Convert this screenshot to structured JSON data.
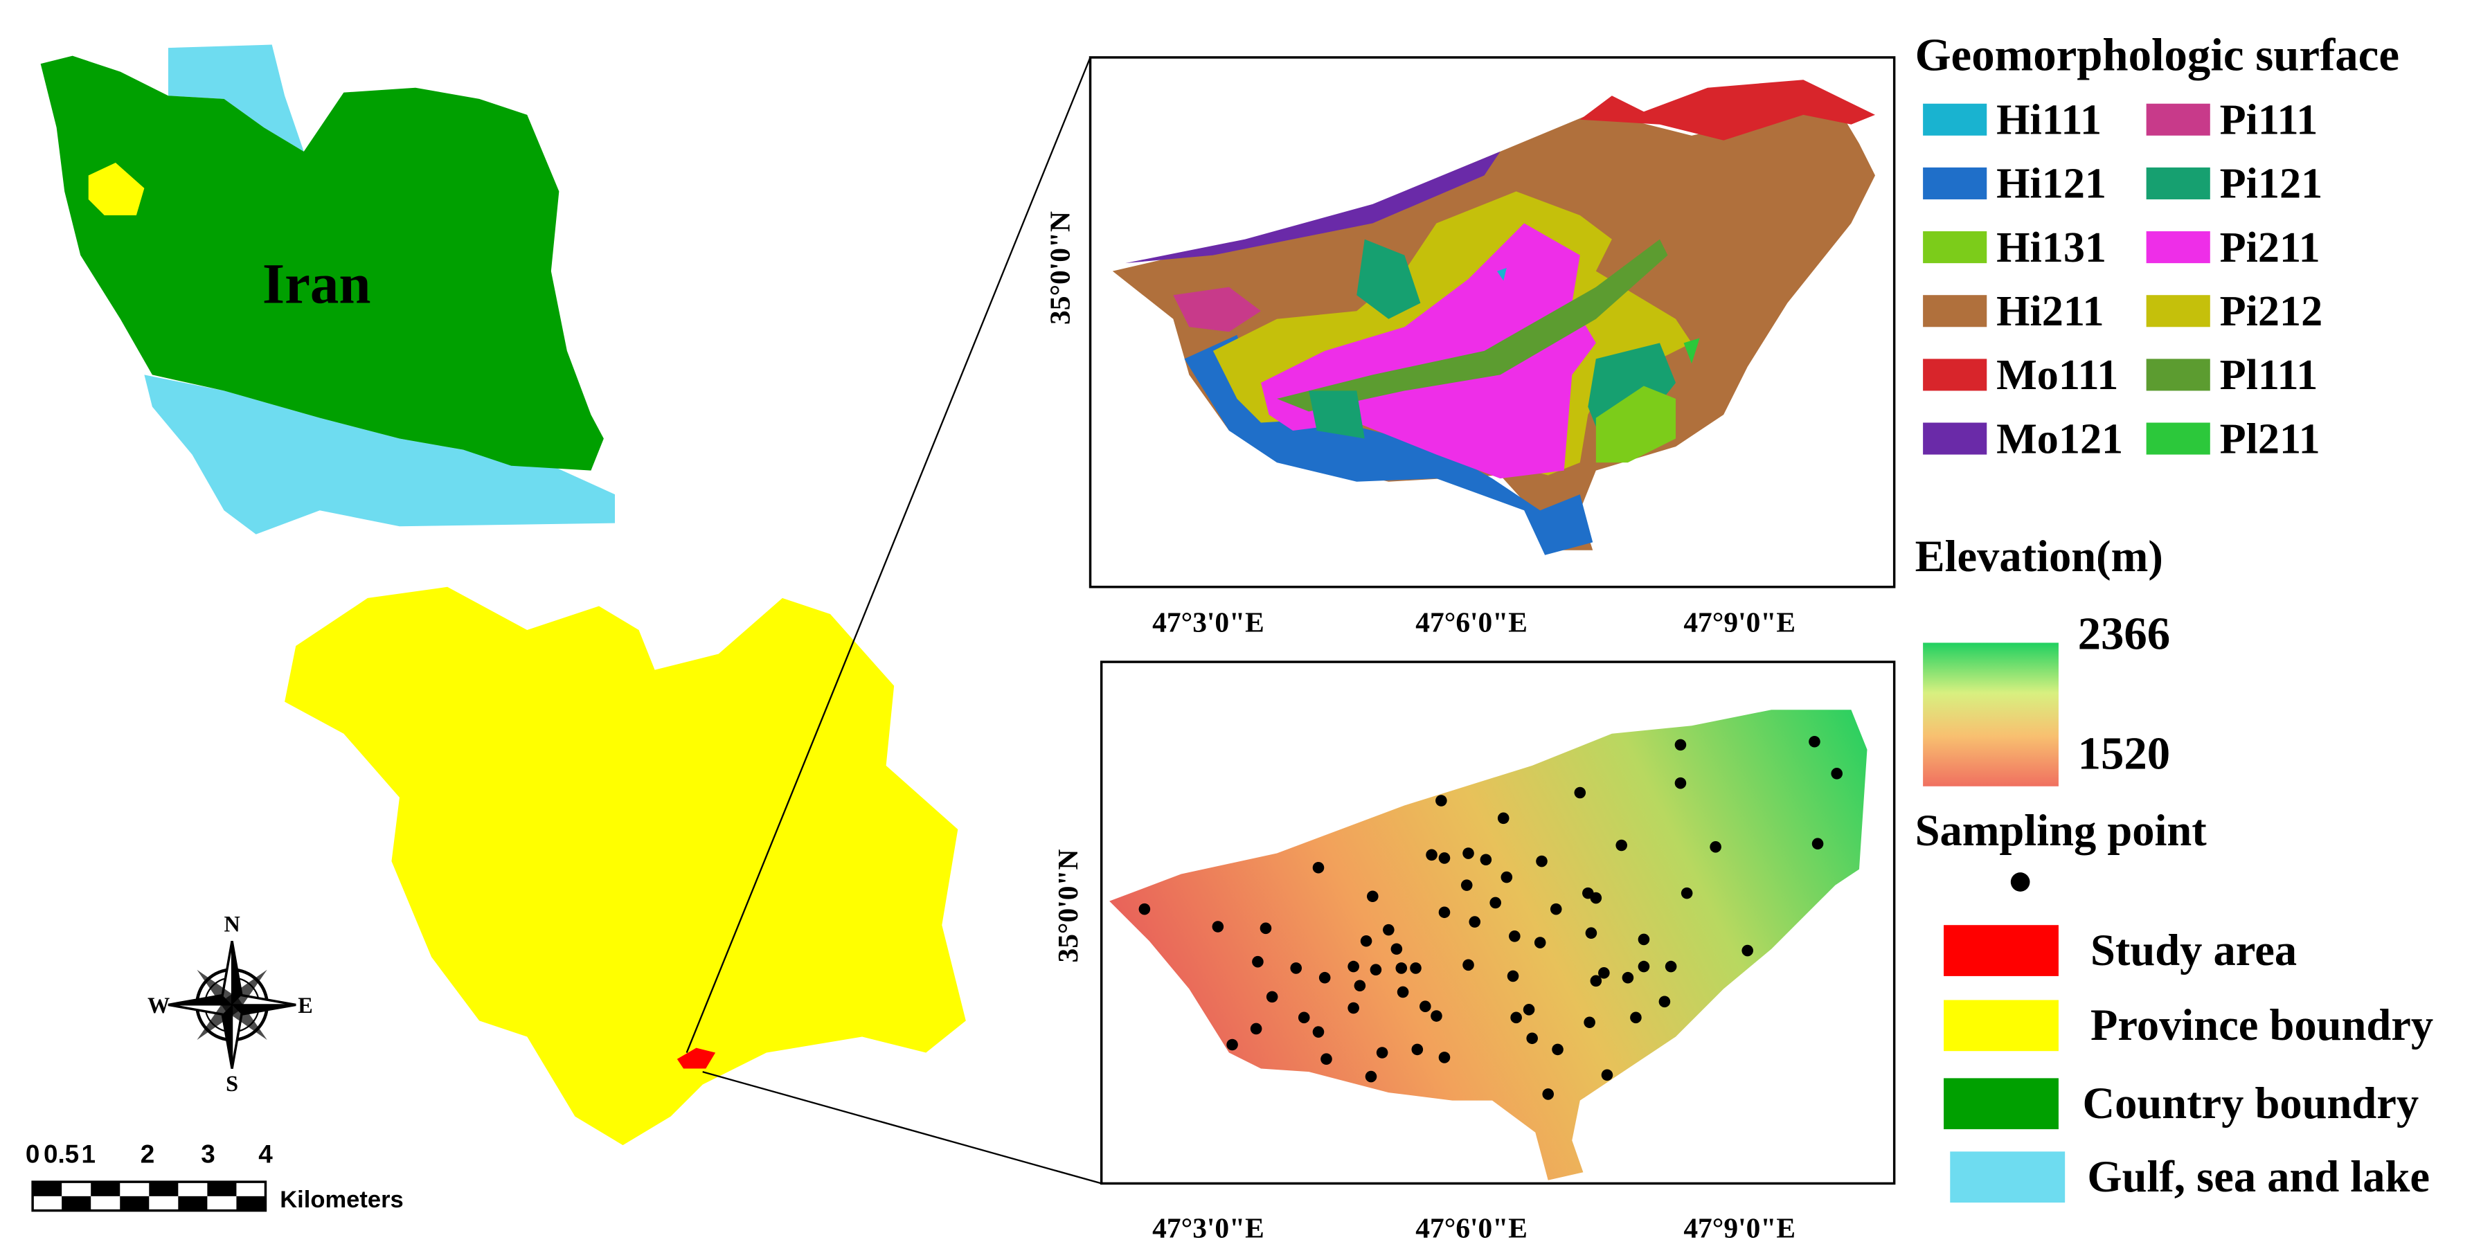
{
  "map": {
    "label": "Iran",
    "compass": {
      "north": "N",
      "east": "E",
      "south": "S",
      "west": "W"
    }
  },
  "scale_bar": {
    "labels": [
      "0",
      "0.5",
      "1",
      "2",
      "3",
      "4"
    ],
    "unit": "Kilometers"
  },
  "panels": [
    {
      "x_labels": [
        "47°3'0\"E",
        "47°6'0\"E",
        "47°9'0\"E"
      ],
      "y_label": "35°0'0\"N"
    },
    {
      "x_labels": [
        "47°3'0\"E",
        "47°6'0\"E",
        "47°9'0\"E"
      ],
      "y_label": "35°0'0\"N"
    }
  ],
  "legend": {
    "title": "Geomorphologic surface",
    "classes": [
      {
        "name": "Hi111",
        "color": "#19b3d0"
      },
      {
        "name": "Hi121",
        "color": "#1f6fc9"
      },
      {
        "name": "Hi131",
        "color": "#7ccc1a"
      },
      {
        "name": "Hi211",
        "color": "#b0703c"
      },
      {
        "name": "Mo111",
        "color": "#d8252b"
      },
      {
        "name": "Mo121",
        "color": "#6a2aa8"
      },
      {
        "name": "Pi111",
        "color": "#c83a8a"
      },
      {
        "name": "Pi121",
        "color": "#16a070"
      },
      {
        "name": "Pi211",
        "color": "#ee2ee8"
      },
      {
        "name": "Pi212",
        "color": "#c5c00b"
      },
      {
        "name": "Pl111",
        "color": "#5c9c30"
      },
      {
        "name": "Pl211",
        "color": "#2cc83b"
      }
    ],
    "elevation_title": "Elevation(m)",
    "elevation_max": 2366,
    "elevation_min": 1520,
    "sampling_title": "Sampling point",
    "items": [
      {
        "name": "Study area",
        "color": "#ff0000"
      },
      {
        "name": "Province boundry",
        "color": "#ffff00"
      },
      {
        "name": "Country boundry",
        "color": "#00a000"
      },
      {
        "name": "Gulf, sea and lake",
        "color": "#6edcf0"
      }
    ]
  }
}
